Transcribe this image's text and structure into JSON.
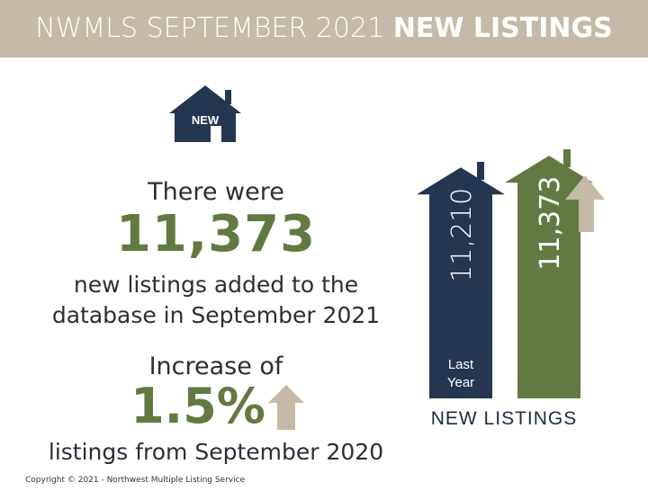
{
  "header": {
    "title_light": "NWMLS SEPTEMBER 2021",
    "title_bold": "NEW LISTINGS"
  },
  "icon_badge": "NEW",
  "summary": {
    "line1": "There were",
    "count": "11,373",
    "line2a": "new listings added to the",
    "line2b": "database in September 2021",
    "line3": "Increase of",
    "percent": "1.5%",
    "line4": "listings from September 2020"
  },
  "copyright": "Copyright © 2021 - Northwest Multiple Listing Service",
  "colors": {
    "header": "#c5baa7",
    "navy": "#243650",
    "green": "#627a42",
    "tan": "#c5baa7"
  },
  "chart_data": {
    "type": "bar",
    "xlabel": "NEW LISTINGS",
    "categories": [
      "Last Year",
      ""
    ],
    "values": [
      11210,
      11373
    ],
    "value_labels": [
      "11,210",
      "11,373"
    ],
    "colors": [
      "#243650",
      "#627a42"
    ],
    "trend": "up"
  }
}
